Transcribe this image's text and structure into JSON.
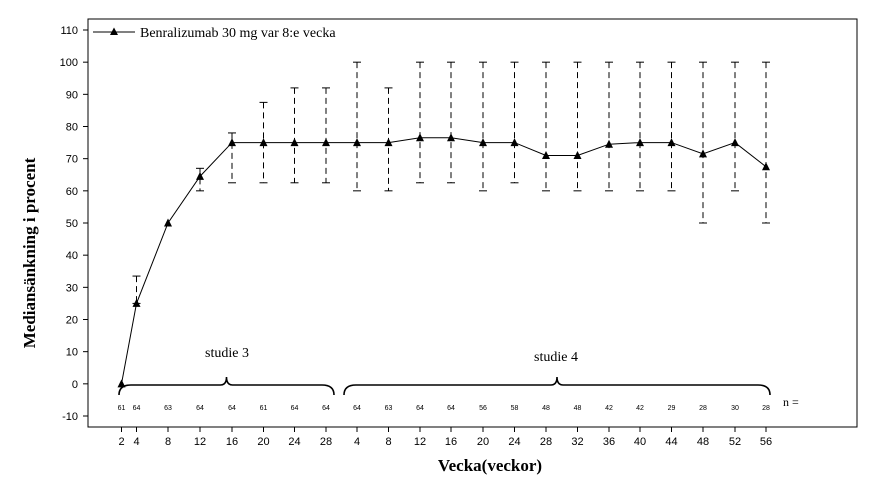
{
  "chart_data": {
    "type": "line",
    "ylabel": "Mediansänkning i procent",
    "xlabel": "Vecka(veckor)",
    "ylim": [
      -10,
      110
    ],
    "yticks": [
      -10,
      0,
      10,
      20,
      30,
      40,
      50,
      60,
      70,
      80,
      90,
      100,
      110
    ],
    "legend": {
      "position": "top-left"
    },
    "x_tick_labels": [
      "2",
      "4",
      "8",
      "12",
      "16",
      "20",
      "24",
      "28",
      "4",
      "8",
      "12",
      "16",
      "20",
      "24",
      "28",
      "32",
      "36",
      "40",
      "44",
      "48",
      "52",
      "56"
    ],
    "series": [
      {
        "name": "Benralizumab 30 mg var 8:e vecka",
        "values": [
          0,
          25,
          50,
          64.5,
          75,
          75,
          75,
          75,
          75,
          75,
          76.5,
          76.5,
          75,
          75,
          71,
          71,
          74.5,
          75,
          75,
          71.5,
          75,
          67.5
        ],
        "lower": [
          null,
          25,
          null,
          60,
          62.5,
          62.5,
          62.5,
          62.5,
          60,
          60,
          62.5,
          62.5,
          60,
          62.5,
          60,
          60,
          60,
          60,
          60,
          50,
          60,
          50
        ],
        "upper": [
          null,
          33.5,
          null,
          67,
          78,
          87.5,
          92,
          92,
          100,
          92,
          100,
          100,
          100,
          100,
          100,
          100,
          100,
          100,
          100,
          100,
          100,
          100
        ]
      }
    ],
    "n_label": "n =",
    "n_values": [
      "61",
      "64",
      "63",
      "64",
      "64",
      "61",
      "64",
      "64",
      "64",
      "63",
      "64",
      "64",
      "56",
      "58",
      "48",
      "48",
      "42",
      "42",
      "29",
      "28",
      "30",
      "28"
    ],
    "groups": [
      {
        "label": "studie 3"
      },
      {
        "label": "studie 4"
      }
    ]
  }
}
